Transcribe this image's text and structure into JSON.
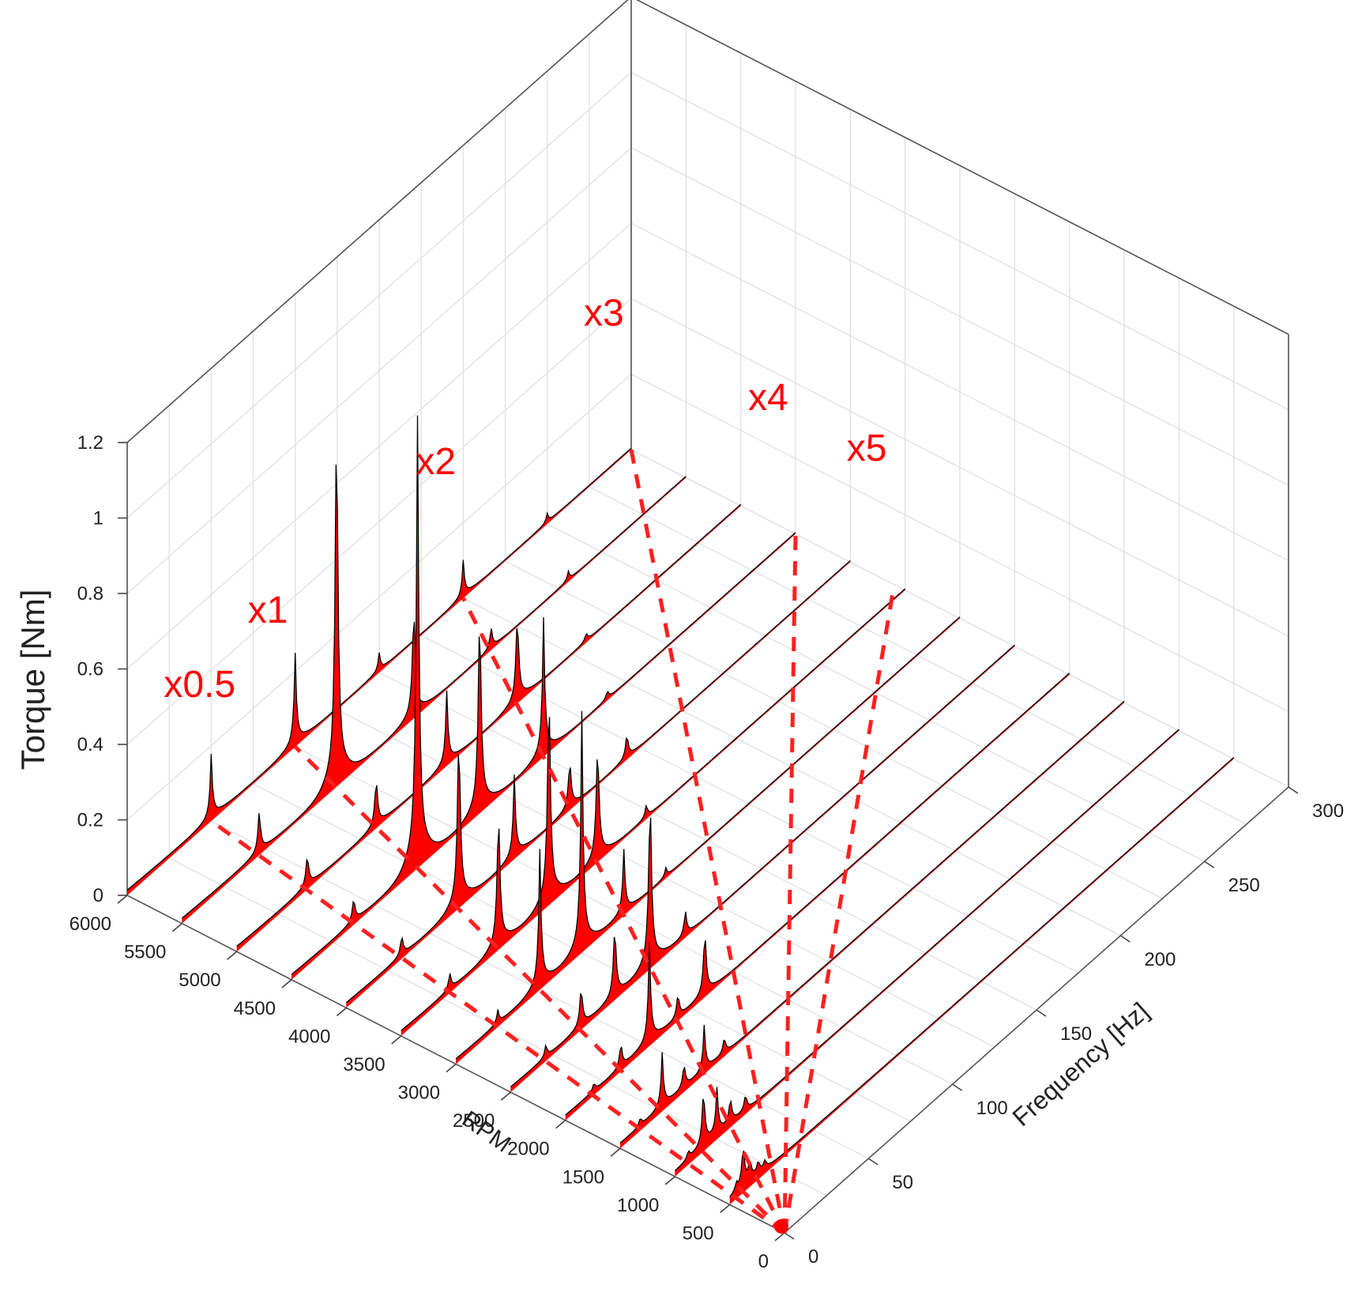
{
  "chart_data": {
    "type": "waterfall-3d",
    "xlabel": "Frequency [Hz]",
    "ylabel": "RPM",
    "zlabel": "Torque [Nm]",
    "xlim": [
      0,
      300
    ],
    "ylim": [
      0,
      6000
    ],
    "zlim": [
      0,
      1.2
    ],
    "x_ticks": [
      0,
      50,
      100,
      150,
      200,
      250,
      300
    ],
    "y_ticks": [
      0,
      500,
      1000,
      1500,
      2000,
      2500,
      3000,
      3500,
      4000,
      4500,
      5000,
      5500,
      6000
    ],
    "z_ticks": [
      {
        "value": 0,
        "label": "0"
      },
      {
        "value": 0.2,
        "label": "0.2"
      },
      {
        "value": 0.4,
        "label": "0.4"
      },
      {
        "value": 0.6,
        "label": "0.6"
      },
      {
        "value": 0.8,
        "label": "0.8"
      },
      {
        "value": 1.0,
        "label": "1"
      },
      {
        "value": 1.2,
        "label": "1.2"
      }
    ],
    "grid": true,
    "fill_color": "#ff0000",
    "line_color": "#000000",
    "series": [
      {
        "rpm": 6000,
        "peaks": [
          [
            50,
            0.14
          ],
          [
            100,
            0.2
          ],
          [
            150,
            0.04
          ],
          [
            200,
            0.08
          ],
          [
            250,
            0.02
          ]
        ]
      },
      {
        "rpm": 5500,
        "peaks": [
          [
            46,
            0.1
          ],
          [
            92,
            0.95
          ],
          [
            138,
            0.28
          ],
          [
            184,
            0.05
          ],
          [
            230,
            0.02
          ]
        ]
      },
      {
        "rpm": 5000,
        "peaks": [
          [
            42,
            0.08
          ],
          [
            83,
            0.12
          ],
          [
            125,
            0.16
          ],
          [
            167,
            0.22
          ],
          [
            208,
            0.02
          ]
        ]
      },
      {
        "rpm": 4500,
        "peaks": [
          [
            37,
            0.06
          ],
          [
            75,
            1.1
          ],
          [
            112,
            0.52
          ],
          [
            150,
            0.3
          ],
          [
            188,
            0.02
          ]
        ]
      },
      {
        "rpm": 4000,
        "peaks": [
          [
            33,
            0.05
          ],
          [
            67,
            0.45
          ],
          [
            100,
            0.18
          ],
          [
            133,
            0.12
          ],
          [
            167,
            0.06
          ]
        ]
      },
      {
        "rpm": 3500,
        "peaks": [
          [
            29,
            0.04
          ],
          [
            58,
            0.35
          ],
          [
            88,
            0.55
          ],
          [
            117,
            0.3
          ],
          [
            146,
            0.03
          ]
        ]
      },
      {
        "rpm": 3000,
        "peaks": [
          [
            25,
            0.03
          ],
          [
            50,
            0.3
          ],
          [
            75,
            0.52
          ],
          [
            100,
            0.14
          ],
          [
            125,
            0.02
          ]
        ]
      },
      {
        "rpm": 2500,
        "peaks": [
          [
            21,
            0.03
          ],
          [
            42,
            0.1
          ],
          [
            62,
            0.18
          ],
          [
            83,
            0.44
          ],
          [
            104,
            0.06
          ]
        ]
      },
      {
        "rpm": 2000,
        "peaks": [
          [
            17,
            0.02
          ],
          [
            33,
            0.06
          ],
          [
            50,
            0.22
          ],
          [
            67,
            0.06
          ],
          [
            83,
            0.16
          ]
        ]
      },
      {
        "rpm": 1500,
        "peaks": [
          [
            12,
            0.02
          ],
          [
            25,
            0.12
          ],
          [
            38,
            0.06
          ],
          [
            50,
            0.1
          ],
          [
            62,
            0.04
          ]
        ]
      },
      {
        "rpm": 1000,
        "peaks": [
          [
            8,
            0.02
          ],
          [
            17,
            0.14
          ],
          [
            25,
            0.1
          ],
          [
            33,
            0.06
          ],
          [
            42,
            0.04
          ]
        ]
      },
      {
        "rpm": 500,
        "peaks": [
          [
            4,
            0.02
          ],
          [
            8,
            0.1
          ],
          [
            12,
            0.05
          ],
          [
            17,
            0.03
          ],
          [
            21,
            0.02
          ]
        ]
      }
    ],
    "annotations": [
      {
        "text": "x0.5",
        "order": 0.5
      },
      {
        "text": "x1",
        "order": 1
      },
      {
        "text": "x2",
        "order": 2
      },
      {
        "text": "x3",
        "order": 3
      },
      {
        "text": "x4",
        "order": 4
      },
      {
        "text": "x5",
        "order": 5
      }
    ]
  }
}
